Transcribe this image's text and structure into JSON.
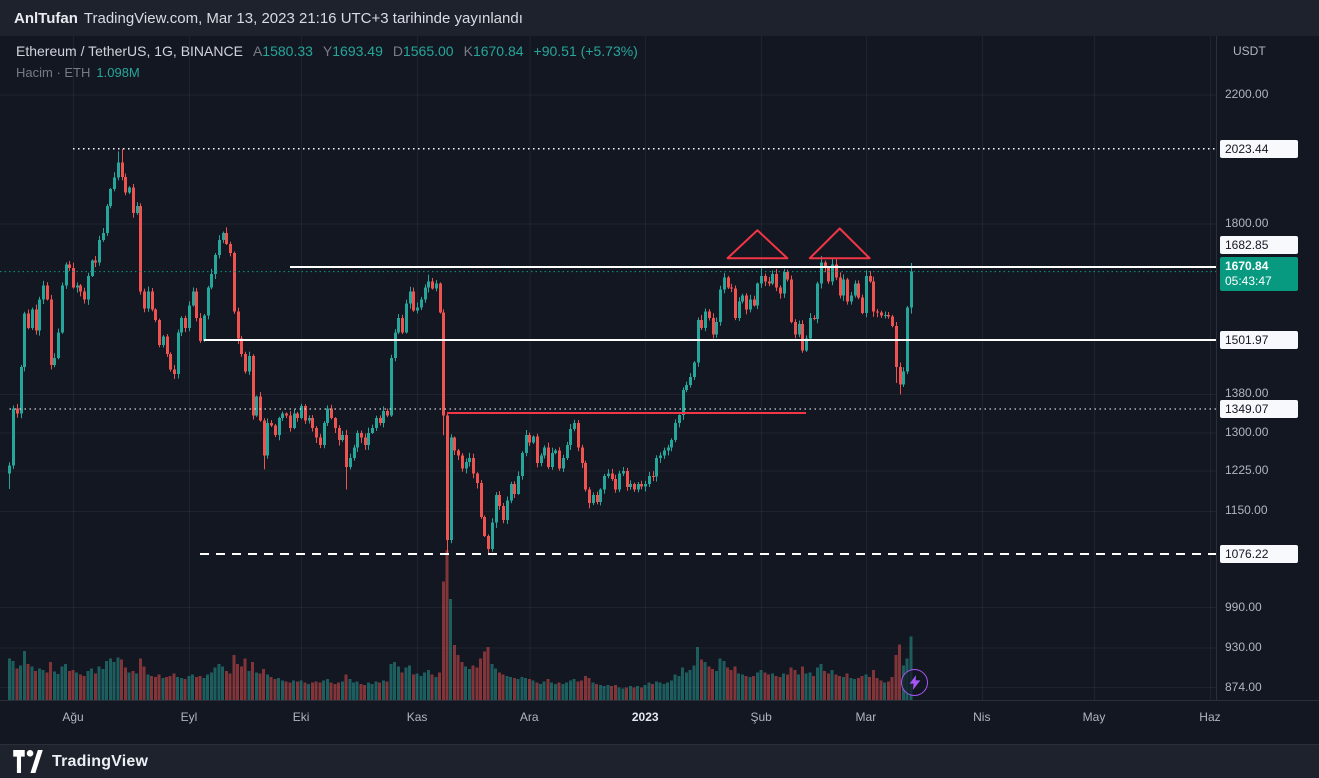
{
  "topbar": {
    "author": "AnlTufan",
    "published_text": "TradingView.com, Mar 13, 2023 21:16 UTC+3 tarihinde yayınlandı"
  },
  "header": {
    "title": "Ethereum / TetherUS, 1G, BINANCE",
    "ohlc": [
      {
        "label": "A",
        "value": "1580.33"
      },
      {
        "label": "Y",
        "value": "1693.49"
      },
      {
        "label": "D",
        "value": "1565.00"
      },
      {
        "label": "K",
        "value": "1670.84"
      }
    ],
    "change": "+90.51 (+5.73%)",
    "volume_label": "Hacim · ETH",
    "volume_value": "1.098M"
  },
  "footer": {
    "brand": "TradingView"
  },
  "colors": {
    "up": "#26a69a",
    "down": "#ef5350",
    "up_vol": "rgba(38,166,154,0.5)",
    "down_vol": "rgba(239,83,80,0.5)",
    "accent": "#089981",
    "grid": "rgba(240,243,250,0.06)",
    "axis_text": "#b2b5be",
    "white_line": "#ffffff",
    "red_drawing": "#f23645",
    "purple": "#a855f7"
  },
  "boost": {
    "icon_name": "lightning-icon"
  },
  "chart_data": {
    "type": "candlestick",
    "title": "Ethereum / TetherUS, 1G, BINANCE",
    "symbol": "ETHUSDT",
    "exchange": "BINANCE",
    "interval": "1G",
    "scale": "log",
    "legend_note": "days = [close, volume_millions] per daily bar, Jul 15 2022 → Mar 13 2023; open = previous close",
    "first_open": 1220,
    "days": [
      [
        1235,
        0.72
      ],
      [
        1350,
        0.68
      ],
      [
        1340,
        0.55
      ],
      [
        1440,
        0.6
      ],
      [
        1565,
        0.85
      ],
      [
        1530,
        0.62
      ],
      [
        1575,
        0.58
      ],
      [
        1525,
        0.5
      ],
      [
        1600,
        0.55
      ],
      [
        1635,
        0.52
      ],
      [
        1600,
        0.48
      ],
      [
        1445,
        0.66
      ],
      [
        1460,
        0.49
      ],
      [
        1520,
        0.45
      ],
      [
        1635,
        0.58
      ],
      [
        1690,
        0.62
      ],
      [
        1680,
        0.5
      ],
      [
        1630,
        0.52
      ],
      [
        1635,
        0.48
      ],
      [
        1620,
        0.44
      ],
      [
        1600,
        0.42
      ],
      [
        1660,
        0.5
      ],
      [
        1700,
        0.55
      ],
      [
        1695,
        0.46
      ],
      [
        1755,
        0.58
      ],
      [
        1775,
        0.54
      ],
      [
        1850,
        0.68
      ],
      [
        1900,
        0.72
      ],
      [
        1935,
        0.66
      ],
      [
        1980,
        0.74
      ],
      [
        1936,
        0.7
      ],
      [
        1890,
        0.56
      ],
      [
        1905,
        0.48
      ],
      [
        1830,
        0.5
      ],
      [
        1850,
        0.46
      ],
      [
        1620,
        0.72
      ],
      [
        1577,
        0.58
      ],
      [
        1620,
        0.44
      ],
      [
        1575,
        0.42
      ],
      [
        1550,
        0.4
      ],
      [
        1490,
        0.44
      ],
      [
        1510,
        0.38
      ],
      [
        1470,
        0.4
      ],
      [
        1435,
        0.42
      ],
      [
        1425,
        0.46
      ],
      [
        1520,
        0.4
      ],
      [
        1555,
        0.38
      ],
      [
        1530,
        0.36
      ],
      [
        1585,
        0.42
      ],
      [
        1620,
        0.44
      ],
      [
        1555,
        0.4
      ],
      [
        1500,
        0.42
      ],
      [
        1560,
        0.38
      ],
      [
        1630,
        0.44
      ],
      [
        1665,
        0.48
      ],
      [
        1715,
        0.56
      ],
      [
        1755,
        0.62
      ],
      [
        1775,
        0.58
      ],
      [
        1745,
        0.5
      ],
      [
        1720,
        0.46
      ],
      [
        1570,
        0.78
      ],
      [
        1505,
        0.62
      ],
      [
        1470,
        0.58
      ],
      [
        1430,
        0.72
      ],
      [
        1465,
        0.5
      ],
      [
        1335,
        0.66
      ],
      [
        1375,
        0.48
      ],
      [
        1325,
        0.46
      ],
      [
        1255,
        0.54
      ],
      [
        1320,
        0.44
      ],
      [
        1315,
        0.4
      ],
      [
        1295,
        0.36
      ],
      [
        1330,
        0.38
      ],
      [
        1340,
        0.34
      ],
      [
        1335,
        0.32
      ],
      [
        1310,
        0.3
      ],
      [
        1340,
        0.34
      ],
      [
        1330,
        0.32
      ],
      [
        1355,
        0.34
      ],
      [
        1325,
        0.3
      ],
      [
        1330,
        0.28
      ],
      [
        1310,
        0.3
      ],
      [
        1290,
        0.32
      ],
      [
        1275,
        0.3
      ],
      [
        1320,
        0.34
      ],
      [
        1350,
        0.36
      ],
      [
        1330,
        0.3
      ],
      [
        1310,
        0.28
      ],
      [
        1285,
        0.3
      ],
      [
        1295,
        0.32
      ],
      [
        1232,
        0.44
      ],
      [
        1250,
        0.36
      ],
      [
        1270,
        0.3
      ],
      [
        1300,
        0.32
      ],
      [
        1290,
        0.28
      ],
      [
        1275,
        0.26
      ],
      [
        1300,
        0.3
      ],
      [
        1310,
        0.28
      ],
      [
        1330,
        0.32
      ],
      [
        1320,
        0.3
      ],
      [
        1345,
        0.34
      ],
      [
        1335,
        0.32
      ],
      [
        1460,
        0.62
      ],
      [
        1520,
        0.66
      ],
      [
        1555,
        0.58
      ],
      [
        1520,
        0.48
      ],
      [
        1590,
        0.56
      ],
      [
        1620,
        0.6
      ],
      [
        1573,
        0.44
      ],
      [
        1580,
        0.46
      ],
      [
        1600,
        0.42
      ],
      [
        1630,
        0.48
      ],
      [
        1645,
        0.52
      ],
      [
        1628,
        0.44
      ],
      [
        1640,
        0.4
      ],
      [
        1568,
        0.48
      ],
      [
        1335,
        2.05
      ],
      [
        1100,
        2.6
      ],
      [
        1290,
        1.75
      ],
      [
        1265,
        0.95
      ],
      [
        1255,
        0.78
      ],
      [
        1230,
        0.66
      ],
      [
        1242,
        0.58
      ],
      [
        1250,
        0.54
      ],
      [
        1220,
        0.6
      ],
      [
        1202,
        0.56
      ],
      [
        1140,
        0.72
      ],
      [
        1107,
        0.84
      ],
      [
        1085,
        0.92
      ],
      [
        1130,
        0.62
      ],
      [
        1180,
        0.55
      ],
      [
        1160,
        0.48
      ],
      [
        1135,
        0.44
      ],
      [
        1170,
        0.42
      ],
      [
        1200,
        0.4
      ],
      [
        1182,
        0.38
      ],
      [
        1215,
        0.36
      ],
      [
        1260,
        0.4
      ],
      [
        1295,
        0.38
      ],
      [
        1280,
        0.36
      ],
      [
        1292,
        0.34
      ],
      [
        1240,
        0.3
      ],
      [
        1255,
        0.28
      ],
      [
        1270,
        0.32
      ],
      [
        1232,
        0.36
      ],
      [
        1260,
        0.3
      ],
      [
        1265,
        0.28
      ],
      [
        1230,
        0.3
      ],
      [
        1250,
        0.28
      ],
      [
        1275,
        0.3
      ],
      [
        1308,
        0.34
      ],
      [
        1320,
        0.36
      ],
      [
        1270,
        0.32
      ],
      [
        1240,
        0.34
      ],
      [
        1190,
        0.42
      ],
      [
        1165,
        0.38
      ],
      [
        1180,
        0.3
      ],
      [
        1167,
        0.28
      ],
      [
        1190,
        0.26
      ],
      [
        1215,
        0.24
      ],
      [
        1220,
        0.26
      ],
      [
        1210,
        0.24
      ],
      [
        1190,
        0.26
      ],
      [
        1220,
        0.22
      ],
      [
        1225,
        0.2
      ],
      [
        1195,
        0.22
      ],
      [
        1200,
        0.24
      ],
      [
        1190,
        0.22
      ],
      [
        1200,
        0.24
      ],
      [
        1196,
        0.22
      ],
      [
        1200,
        0.26
      ],
      [
        1215,
        0.3
      ],
      [
        1214,
        0.28
      ],
      [
        1250,
        0.32
      ],
      [
        1255,
        0.3
      ],
      [
        1265,
        0.28
      ],
      [
        1270,
        0.3
      ],
      [
        1285,
        0.34
      ],
      [
        1320,
        0.44
      ],
      [
        1336,
        0.42
      ],
      [
        1390,
        0.56
      ],
      [
        1400,
        0.48
      ],
      [
        1418,
        0.52
      ],
      [
        1450,
        0.6
      ],
      [
        1550,
        0.92
      ],
      [
        1530,
        0.7
      ],
      [
        1570,
        0.66
      ],
      [
        1555,
        0.58
      ],
      [
        1515,
        0.54
      ],
      [
        1545,
        0.5
      ],
      [
        1625,
        0.72
      ],
      [
        1655,
        0.68
      ],
      [
        1630,
        0.56
      ],
      [
        1627,
        0.52
      ],
      [
        1555,
        0.58
      ],
      [
        1595,
        0.46
      ],
      [
        1610,
        0.44
      ],
      [
        1575,
        0.42
      ],
      [
        1600,
        0.4
      ],
      [
        1585,
        0.42
      ],
      [
        1640,
        0.48
      ],
      [
        1660,
        0.52
      ],
      [
        1645,
        0.48
      ],
      [
        1640,
        0.44
      ],
      [
        1665,
        0.46
      ],
      [
        1630,
        0.42
      ],
      [
        1615,
        0.4
      ],
      [
        1670,
        0.46
      ],
      [
        1650,
        0.44
      ],
      [
        1545,
        0.56
      ],
      [
        1515,
        0.52
      ],
      [
        1540,
        0.44
      ],
      [
        1478,
        0.58
      ],
      [
        1505,
        0.46
      ],
      [
        1555,
        0.48
      ],
      [
        1552,
        0.42
      ],
      [
        1640,
        0.56
      ],
      [
        1695,
        0.62
      ],
      [
        1680,
        0.5
      ],
      [
        1645,
        0.46
      ],
      [
        1690,
        0.52
      ],
      [
        1655,
        0.44
      ],
      [
        1610,
        0.42
      ],
      [
        1650,
        0.4
      ],
      [
        1595,
        0.46
      ],
      [
        1610,
        0.38
      ],
      [
        1640,
        0.36
      ],
      [
        1605,
        0.38
      ],
      [
        1567,
        0.42
      ],
      [
        1660,
        0.44
      ],
      [
        1645,
        0.4
      ],
      [
        1570,
        0.52
      ],
      [
        1568,
        0.38
      ],
      [
        1560,
        0.34
      ],
      [
        1562,
        0.3
      ],
      [
        1558,
        0.32
      ],
      [
        1535,
        0.4
      ],
      [
        1440,
        0.78
      ],
      [
        1402,
        0.96
      ],
      [
        1430,
        0.6
      ],
      [
        1580.33,
        0.72
      ],
      [
        1670.84,
        1.098
      ]
    ],
    "wick_overrides": {
      "0": [
        null,
        1191
      ],
      "29": [
        2015,
        null
      ],
      "30": [
        2023.44,
        null
      ],
      "58": [
        1790,
        null
      ],
      "68": [
        null,
        1228
      ],
      "90": [
        null,
        1190
      ],
      "112": [
        1663,
        null
      ],
      "116": [
        null,
        1295
      ],
      "117": [
        1340,
        1076.22
      ],
      "128": [
        null,
        1078
      ],
      "201": [
        1680,
        null
      ],
      "207": [
        1678,
        null
      ],
      "217": [
        1712,
        null
      ],
      "220": [
        1705,
        null
      ],
      "237": [
        null,
        1405
      ],
      "238": [
        null,
        1380
      ],
      "241": [
        1693.49,
        1565
      ]
    },
    "last_candle": {
      "open": 1580.33,
      "high": 1693.49,
      "low": 1565.0,
      "close": 1670.84
    },
    "levels": [
      {
        "price": 2023.44,
        "style": "dotted",
        "from_day": 17
      },
      {
        "price": 1682.85,
        "style": "solid",
        "from_day": 75
      },
      {
        "price": 1501.97,
        "style": "solid",
        "from_day": 52
      },
      {
        "price": 1349.07,
        "style": "dotted",
        "from_day": 0
      },
      {
        "price": 1076.22,
        "style": "dashed",
        "from_day": 51
      }
    ],
    "last_price_line": {
      "price": 1670.84
    },
    "red_segment": {
      "price": 1341,
      "from_day": 117,
      "to_day": 213
    },
    "triangles": [
      {
        "base_start_day": 192,
        "base_end_day": 208,
        "apex_day": 200,
        "base_price": 1706,
        "apex_price": 1782
      },
      {
        "base_start_day": 214,
        "base_end_day": 230,
        "apex_day": 222,
        "base_price": 1706,
        "apex_price": 1787
      }
    ],
    "volume_scale_max": 2.6,
    "y_axis": {
      "currency_label": "USDT",
      "range_top": 2280,
      "range_bottom": 860,
      "gridlines": [
        {
          "price": 2200,
          "label": "2200.00"
        },
        {
          "price": 1800,
          "label": "1800.00"
        },
        {
          "price": 1380,
          "label": "1380.00"
        },
        {
          "price": 1300,
          "label": "1300.00"
        },
        {
          "price": 1225,
          "label": "1225.00"
        },
        {
          "price": 1150,
          "label": "1150.00"
        },
        {
          "price": 990,
          "label": "990.00"
        },
        {
          "price": 930,
          "label": "930.00"
        },
        {
          "price": 874,
          "label": "874.00"
        }
      ],
      "badges": [
        {
          "price": 2023.44,
          "label": "2023.44",
          "shift": 0
        },
        {
          "price": 1682.85,
          "label": "1682.85",
          "shift": -22
        },
        {
          "price": 1501.97,
          "label": "1501.97",
          "shift": 0
        },
        {
          "price": 1349.07,
          "label": "1349.07",
          "shift": 0
        },
        {
          "price": 1076.22,
          "label": "1076.22",
          "shift": 0
        }
      ],
      "current_badge": {
        "price": 1670.84,
        "label": "1670.84",
        "countdown": "05:43:47"
      }
    },
    "x_axis": {
      "ticks": [
        {
          "label": "Ağu",
          "day": 17
        },
        {
          "label": "Eyl",
          "day": 48
        },
        {
          "label": "Eki",
          "day": 78
        },
        {
          "label": "Kas",
          "day": 109
        },
        {
          "label": "Ara",
          "day": 139
        },
        {
          "label": "2023",
          "day": 170,
          "major": true
        },
        {
          "label": "Şub",
          "day": 201
        },
        {
          "label": "Mar",
          "day": 229
        },
        {
          "label": "Nis",
          "day": 260
        },
        {
          "label": "May",
          "day": 290
        },
        {
          "label": "Haz",
          "day": 321
        }
      ]
    }
  }
}
